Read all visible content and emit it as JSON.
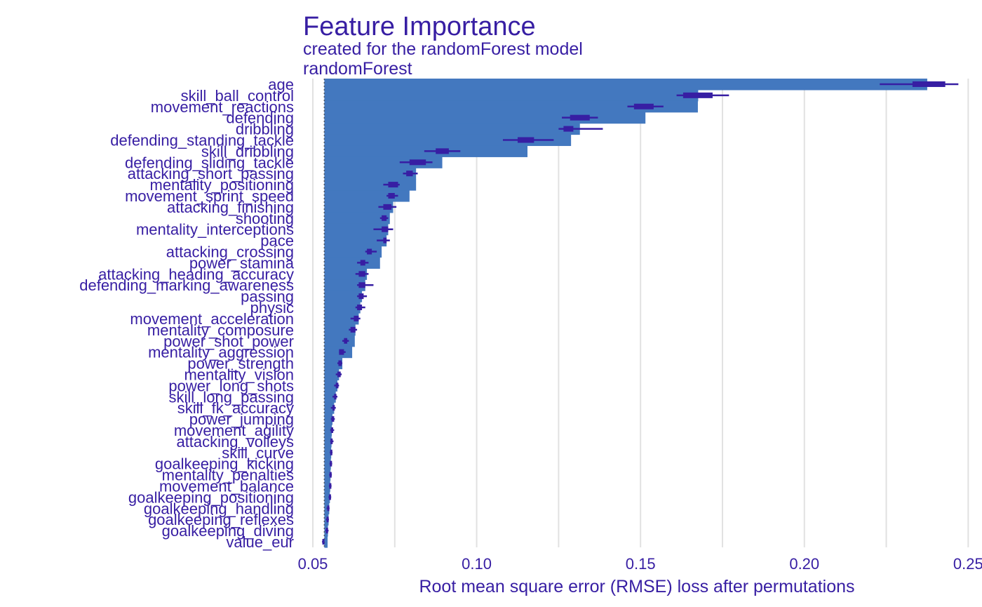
{
  "chart_data": {
    "type": "bar",
    "title": "Feature Importance",
    "subtitle": "created for the randomForest model",
    "model_label": "randomForest",
    "xlabel": "Root mean square error (RMSE) loss after permutations",
    "ylabel": "",
    "xlim": [
      0.047,
      0.251
    ],
    "baseline": 0.0535,
    "x_ticks": [
      0.05,
      0.1,
      0.15,
      0.2,
      0.25
    ],
    "x_tick_labels": [
      "0.05",
      "0.10",
      "0.15",
      "0.20",
      "0.25"
    ],
    "grid": true,
    "legend": "none",
    "categories": [
      "age",
      "skill_ball_control",
      "movement_reactions",
      "defending",
      "dribbling",
      "defending_standing_tackle",
      "skill_dribbling",
      "defending_sliding_tackle",
      "attacking_short_passing",
      "mentality_positioning",
      "movement_sprint_speed",
      "attacking_finishing",
      "shooting",
      "mentality_interceptions",
      "pace",
      "attacking_crossing",
      "power_stamina",
      "attacking_heading_accuracy",
      "defending_marking_awareness",
      "passing",
      "physic",
      "movement_acceleration",
      "mentality_composure",
      "power_shot_power",
      "mentality_aggression",
      "power_strength",
      "mentality_vision",
      "power_long_shots",
      "skill_long_passing",
      "skill_fk_accuracy",
      "power_jumping",
      "movement_agility",
      "attacking_volleys",
      "skill_curve",
      "goalkeeping_kicking",
      "mentality_penalties",
      "movement_balance",
      "goalkeeping_positioning",
      "goalkeeping_handling",
      "goalkeeping_reflexes",
      "goalkeeping_diving",
      "value_eur"
    ],
    "values": [
      0.2375,
      0.1676,
      0.1675,
      0.1515,
      0.1315,
      0.1288,
      0.1155,
      0.0895,
      0.0815,
      0.0815,
      0.0795,
      0.0745,
      0.0735,
      0.073,
      0.0725,
      0.071,
      0.0705,
      0.0665,
      0.066,
      0.065,
      0.0645,
      0.064,
      0.063,
      0.0628,
      0.062,
      0.059,
      0.058,
      0.0575,
      0.057,
      0.0565,
      0.056,
      0.0558,
      0.0557,
      0.0556,
      0.0555,
      0.0554,
      0.0553,
      0.0552,
      0.055,
      0.0548,
      0.0546,
      0.0545
    ],
    "boxes": [
      {
        "min": 0.223,
        "q1": 0.233,
        "q3": 0.243,
        "max": 0.247
      },
      {
        "min": 0.161,
        "q1": 0.163,
        "q3": 0.172,
        "max": 0.177
      },
      {
        "min": 0.146,
        "q1": 0.148,
        "q3": 0.154,
        "max": 0.157
      },
      {
        "min": 0.126,
        "q1": 0.1285,
        "q3": 0.1345,
        "max": 0.137
      },
      {
        "min": 0.125,
        "q1": 0.1265,
        "q3": 0.1295,
        "max": 0.1385
      },
      {
        "min": 0.108,
        "q1": 0.1125,
        "q3": 0.1175,
        "max": 0.1235
      },
      {
        "min": 0.084,
        "q1": 0.0875,
        "q3": 0.0915,
        "max": 0.095
      },
      {
        "min": 0.0765,
        "q1": 0.0795,
        "q3": 0.0845,
        "max": 0.0865
      },
      {
        "min": 0.0775,
        "q1": 0.0785,
        "q3": 0.0805,
        "max": 0.082
      },
      {
        "min": 0.0715,
        "q1": 0.073,
        "q3": 0.076,
        "max": 0.0765
      },
      {
        "min": 0.0725,
        "q1": 0.073,
        "q3": 0.075,
        "max": 0.076
      },
      {
        "min": 0.07,
        "q1": 0.0715,
        "q3": 0.074,
        "max": 0.0755
      },
      {
        "min": 0.0705,
        "q1": 0.071,
        "q3": 0.0725,
        "max": 0.073
      },
      {
        "min": 0.0685,
        "q1": 0.071,
        "q3": 0.073,
        "max": 0.0745
      },
      {
        "min": 0.0695,
        "q1": 0.0715,
        "q3": 0.0725,
        "max": 0.0735
      },
      {
        "min": 0.066,
        "q1": 0.0665,
        "q3": 0.068,
        "max": 0.0695
      },
      {
        "min": 0.0635,
        "q1": 0.0645,
        "q3": 0.066,
        "max": 0.067
      },
      {
        "min": 0.063,
        "q1": 0.064,
        "q3": 0.066,
        "max": 0.067
      },
      {
        "min": 0.0635,
        "q1": 0.064,
        "q3": 0.066,
        "max": 0.0685
      },
      {
        "min": 0.0635,
        "q1": 0.064,
        "q3": 0.0655,
        "max": 0.0665
      },
      {
        "min": 0.063,
        "q1": 0.0635,
        "q3": 0.065,
        "max": 0.066
      },
      {
        "min": 0.0615,
        "q1": 0.0625,
        "q3": 0.064,
        "max": 0.0645
      },
      {
        "min": 0.061,
        "q1": 0.0615,
        "q3": 0.063,
        "max": 0.0635
      },
      {
        "min": 0.059,
        "q1": 0.0595,
        "q3": 0.0605,
        "max": 0.061
      },
      {
        "min": 0.058,
        "q1": 0.058,
        "q3": 0.0595,
        "max": 0.06
      },
      {
        "min": 0.0575,
        "q1": 0.0578,
        "q3": 0.0588,
        "max": 0.059
      },
      {
        "min": 0.057,
        "q1": 0.0575,
        "q3": 0.0585,
        "max": 0.0588
      },
      {
        "min": 0.0565,
        "q1": 0.057,
        "q3": 0.0578,
        "max": 0.058
      },
      {
        "min": 0.056,
        "q1": 0.0565,
        "q3": 0.0572,
        "max": 0.0575
      },
      {
        "min": 0.0555,
        "q1": 0.056,
        "q3": 0.0567,
        "max": 0.057
      },
      {
        "min": 0.0555,
        "q1": 0.0557,
        "q3": 0.0565,
        "max": 0.0567
      },
      {
        "min": 0.0553,
        "q1": 0.0555,
        "q3": 0.0562,
        "max": 0.0565
      },
      {
        "min": 0.0553,
        "q1": 0.0554,
        "q3": 0.056,
        "max": 0.0563
      },
      {
        "min": 0.0552,
        "q1": 0.0553,
        "q3": 0.0558,
        "max": 0.056
      },
      {
        "min": 0.0551,
        "q1": 0.0552,
        "q3": 0.0557,
        "max": 0.0559
      },
      {
        "min": 0.055,
        "q1": 0.0551,
        "q3": 0.0556,
        "max": 0.0558
      },
      {
        "min": 0.0549,
        "q1": 0.055,
        "q3": 0.0555,
        "max": 0.0557
      },
      {
        "min": 0.0548,
        "q1": 0.0549,
        "q3": 0.0554,
        "max": 0.0556
      },
      {
        "min": 0.0542,
        "q1": 0.0544,
        "q3": 0.0549,
        "max": 0.0551
      },
      {
        "min": 0.054,
        "q1": 0.0542,
        "q3": 0.0547,
        "max": 0.0549
      },
      {
        "min": 0.0538,
        "q1": 0.054,
        "q3": 0.0546,
        "max": 0.0548
      },
      {
        "min": 0.0528,
        "q1": 0.0529,
        "q3": 0.0532,
        "max": 0.0533
      }
    ],
    "colors": {
      "bar": "#4378bf",
      "box": "#371ea3",
      "text": "#371ea3",
      "grid": "#e1e1e1",
      "baseline": "#4d5766"
    }
  }
}
